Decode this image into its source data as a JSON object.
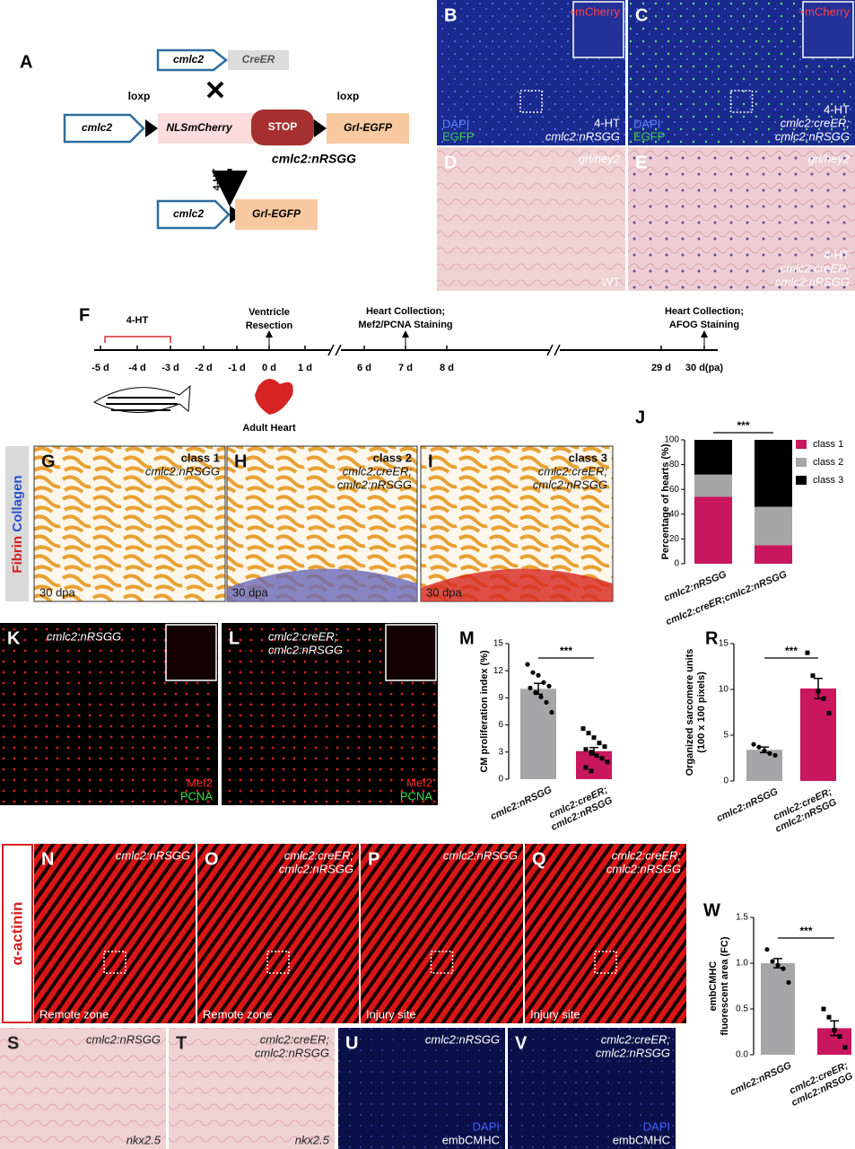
{
  "diagram_a": {
    "letter": "A",
    "top_promoter": "cmlc2",
    "creer": "CreER",
    "loxp_left": "loxp",
    "loxp_right": "loxp",
    "mid_promoter": "cmlc2",
    "nlsmcherry": "NLSmCherry",
    "stop": "STOP",
    "grl_egfp": "Grl-EGFP",
    "construct": "cmlc2:nRSGG",
    "treatment": "4-HT",
    "bottom_promoter": "cmlc2",
    "bottom_grl_egfp": "Grl-EGFP"
  },
  "timeline_f": {
    "letter": "F",
    "treatment": "4-HT",
    "resection": [
      "Ventricle",
      "Resection"
    ],
    "collection_1": [
      "Heart Collection;",
      "Mef2/PCNA Staining"
    ],
    "collection_2": [
      "Heart Collection;",
      "AFOG Staining"
    ],
    "ticks": [
      "-5 d",
      "-4 d",
      "-3 d",
      "-2 d",
      "-1 d",
      "0 d",
      "1 d",
      "6 d",
      "7 d",
      "8 d",
      "29 d",
      "30 d(pa)"
    ],
    "adult_heart": "Adult Heart"
  },
  "side_labels": {
    "fibrin": "Fibrin",
    "collagen": "Collagen",
    "alpha_actinin": "α-actinin"
  },
  "panels": [
    {
      "letter": "B",
      "top_right": [
        "+mCherry"
      ],
      "bottom_left": [
        "DAPI",
        "EGFP"
      ],
      "bottom_right": [
        "4-HT",
        "cmlc2:nRSGG"
      ]
    },
    {
      "letter": "C",
      "top_right": [
        "+mCherry"
      ],
      "bottom_left": [
        "DAPI",
        "EGFP"
      ],
      "bottom_right": [
        "4-HT",
        "cmlc2:creER;",
        "cmlc2:nRSGG"
      ]
    },
    {
      "letter": "D",
      "top_right": [
        "grl/hey2"
      ],
      "bottom_right": [
        "WT"
      ]
    },
    {
      "letter": "E",
      "top_right": [
        "grl/hey2"
      ],
      "bottom_right": [
        "4-HT",
        "cmlc2:creER;",
        "cmlc2:nRSGG"
      ]
    },
    {
      "letter": "G",
      "top_right": [
        "class 1",
        "cmlc2:nRSGG"
      ],
      "bottom_left": [
        "30 dpa"
      ]
    },
    {
      "letter": "H",
      "top_right": [
        "class 2",
        "cmlc2:creER;",
        "cmlc2:nRSGG"
      ],
      "bottom_left": [
        "30 dpa"
      ]
    },
    {
      "letter": "I",
      "top_right": [
        "class 3",
        "cmlc2:creER;",
        "cmlc2:nRSGG"
      ],
      "bottom_left": [
        "30 dpa"
      ]
    },
    {
      "letter": "K",
      "top_left": [
        "cmlc2:nRSGG"
      ],
      "bottom_right": [
        "Mef2",
        "PCNA"
      ]
    },
    {
      "letter": "L",
      "top_left": [
        "cmlc2:creER;",
        "cmlc2:nRSGG"
      ],
      "bottom_right": [
        "Mef2",
        "PCNA"
      ]
    },
    {
      "letter": "N",
      "top_right": [
        "cmlc2:nRSGG"
      ],
      "bottom_left": [
        "Remote zone"
      ]
    },
    {
      "letter": "O",
      "top_right": [
        "cmlc2:creER;",
        "cmlc2:nRSGG"
      ],
      "bottom_left": [
        "Remote zone"
      ]
    },
    {
      "letter": "P",
      "top_right": [
        "cmlc2:nRSGG"
      ],
      "bottom_left": [
        "Injury site"
      ]
    },
    {
      "letter": "Q",
      "top_right": [
        "cmlc2:creER;",
        "cmlc2:nRSGG"
      ],
      "bottom_left": [
        "Injury site"
      ]
    },
    {
      "letter": "S",
      "top_right": [
        "cmlc2:nRSGG"
      ],
      "bottom_right": [
        "nkx2.5"
      ]
    },
    {
      "letter": "T",
      "top_right": [
        "cmlc2:creER;",
        "cmlc2:nRSGG"
      ],
      "bottom_right": [
        "nkx2.5"
      ]
    },
    {
      "letter": "U",
      "top_right": [
        "cmlc2:nRSGG"
      ],
      "bottom_right": [
        "DAPI",
        "embCMHC"
      ]
    },
    {
      "letter": "V",
      "top_right": [
        "cmlc2:creER;",
        "cmlc2:nRSGG"
      ],
      "bottom_right": [
        "DAPI",
        "embCMHC"
      ]
    }
  ],
  "chart_data": [
    {
      "type": "stacked_bar",
      "panel": "J",
      "y_label": [
        "Percentage of hearts (%)"
      ],
      "categories": [
        "cmlc2:nRSGG",
        "cmlc2:creER;cmlc2:nRSGG"
      ],
      "series": [
        {
          "name": "class 1",
          "color": "#c8175e",
          "values": [
            54,
            15
          ]
        },
        {
          "name": "class 2",
          "color": "#a6a6a6",
          "values": [
            18,
            31
          ]
        },
        {
          "name": "class 3",
          "color": "#000000",
          "values": [
            28,
            54
          ]
        }
      ],
      "ylim": [
        0,
        100
      ],
      "yticks": [
        0,
        20,
        40,
        60,
        80,
        100
      ],
      "annotation": "***",
      "legend": "right"
    },
    {
      "type": "bar",
      "panel": "M",
      "y_label": [
        "CM proliferation index (%)"
      ],
      "categories": [
        "cmlc2:nRSGG",
        "cmlc2:creER;\ncmlc2:nRSGG"
      ],
      "values": [
        10.0,
        3.1
      ],
      "errors": [
        0.6,
        0.4
      ],
      "colors": [
        "#a6a6a8",
        "#c8175e"
      ],
      "points": [
        [
          12.7,
          11.8,
          11.5,
          10.7,
          10.3,
          10.1,
          9.6,
          9.1,
          8.5,
          7.4
        ],
        [
          5.6,
          5.1,
          4.6,
          4.0,
          3.6,
          3.3,
          3.0,
          2.6,
          2.3,
          1.9,
          1.3,
          0.9
        ]
      ],
      "ylim": [
        0,
        15
      ],
      "yticks": [
        0,
        3,
        6,
        9,
        12,
        15
      ],
      "annotation": "***"
    },
    {
      "type": "bar",
      "panel": "R",
      "y_label": [
        "Organized sarcomere units",
        "(100 x 100 pixels)"
      ],
      "categories": [
        "cmlc2:nRSGG",
        "cmlc2:creER;\ncmlc2:nRSGG"
      ],
      "values": [
        3.4,
        10.1
      ],
      "errors": [
        0.3,
        1.1
      ],
      "colors": [
        "#a6a6a8",
        "#c8175e"
      ],
      "points": [
        [
          4.0,
          3.7,
          3.3,
          3.0,
          2.8
        ],
        [
          14.0,
          11.5,
          9.8,
          9.0,
          7.4
        ]
      ],
      "ylim": [
        0,
        15
      ],
      "yticks": [
        0,
        5,
        10,
        15
      ],
      "annotation": "***"
    },
    {
      "type": "bar",
      "panel": "W",
      "y_label": [
        "embCMHC",
        "fluorescent area (FC)"
      ],
      "categories": [
        "cmlc2:nRSGG",
        "cmlc2:creER;\ncmlc2:nRSGG"
      ],
      "values": [
        1.0,
        0.29
      ],
      "errors": [
        0.05,
        0.08
      ],
      "colors": [
        "#a6a6a8",
        "#c8175e"
      ],
      "points": [
        [
          1.15,
          1.02,
          0.98,
          0.94,
          0.79
        ],
        [
          0.5,
          0.41,
          0.27,
          0.2,
          0.08
        ]
      ],
      "ylim": [
        0,
        1.5
      ],
      "yticks": [
        {
          "value": 0,
          "label": "0.0"
        },
        {
          "value": 0.5,
          "label": "0.5"
        },
        {
          "value": 1,
          "label": "1.0"
        },
        {
          "value": 1.5,
          "label": "1.5"
        }
      ],
      "annotation": "***"
    }
  ]
}
